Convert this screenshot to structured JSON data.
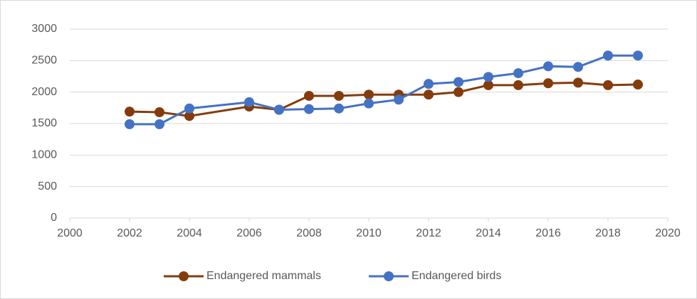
{
  "chart_data": {
    "type": "line",
    "x": [
      2002,
      2003,
      2004,
      2006,
      2007,
      2008,
      2009,
      2010,
      2011,
      2012,
      2013,
      2014,
      2015,
      2016,
      2017,
      2018,
      2019
    ],
    "series": [
      {
        "name": "Endangered mammals",
        "color": "#843c0c",
        "values": [
          1690,
          1680,
          1620,
          1770,
          1720,
          1940,
          1940,
          1960,
          1960,
          1960,
          2000,
          2110,
          2110,
          2140,
          2150,
          2110,
          2120
        ]
      },
      {
        "name": "Endangered birds",
        "color": "#4472c4",
        "values": [
          1490,
          1490,
          1740,
          1840,
          1720,
          1730,
          1740,
          1820,
          1880,
          2130,
          2160,
          2240,
          2300,
          2410,
          2400,
          2580,
          2580
        ]
      }
    ],
    "xlim": [
      2000,
      2020
    ],
    "xticks": [
      2000,
      2002,
      2004,
      2006,
      2008,
      2010,
      2012,
      2014,
      2016,
      2018,
      2020
    ],
    "ylim": [
      0,
      3000
    ],
    "yticks": [
      0,
      500,
      1000,
      1500,
      2000,
      2500,
      3000
    ],
    "grid": true,
    "legend": "bottom"
  }
}
